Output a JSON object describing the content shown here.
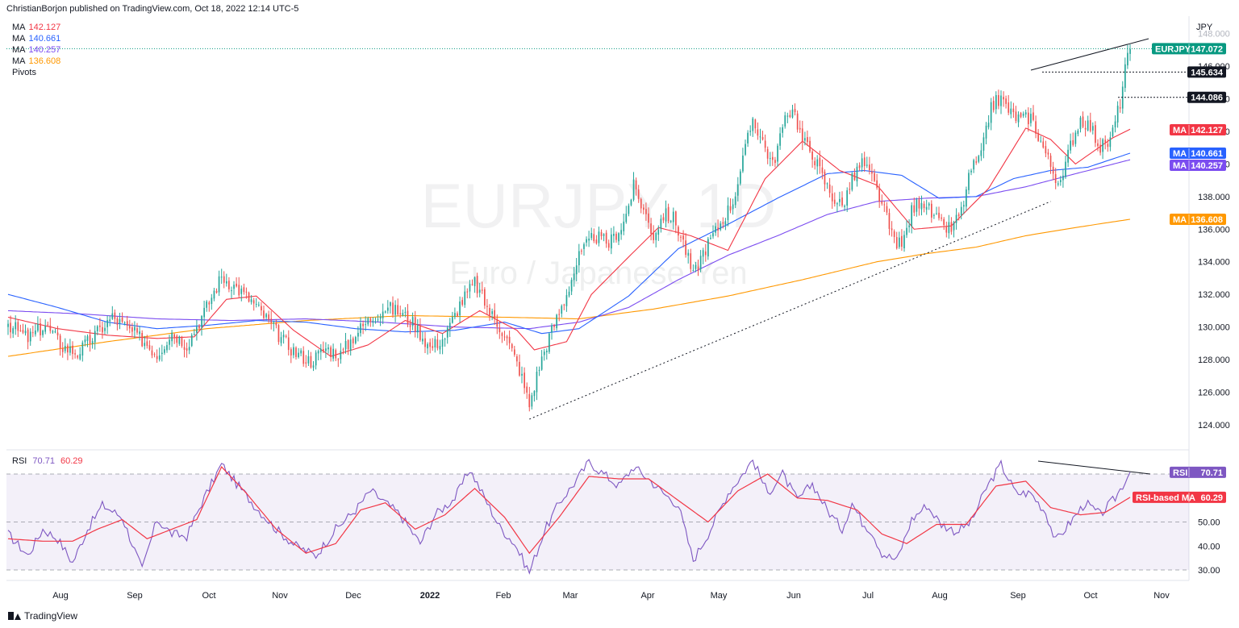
{
  "header": {
    "publisher_line": "ChristianBorjon published on TradingView.com, Oct 18, 2022 12:14 UTC-5"
  },
  "legend": [
    {
      "label": "MA",
      "value": "142.127",
      "color": "#f23645"
    },
    {
      "label": "MA",
      "value": "140.661",
      "color": "#2962ff"
    },
    {
      "label": "MA",
      "value": "140.257",
      "color": "#7b4cf0"
    },
    {
      "label": "MA",
      "value": "136.608",
      "color": "#ff9800"
    },
    {
      "label": "Pivots",
      "value": "",
      "color": "#131722"
    }
  ],
  "rsi_legend": {
    "label": "RSI",
    "value1": "70.71",
    "color1": "#7e57c2",
    "value2": "60.29",
    "color2": "#f23645"
  },
  "footer": {
    "brand": "TradingView"
  },
  "colors": {
    "up": "#26a69a",
    "down": "#ef5350",
    "ma20": "#f23645",
    "ma50": "#2962ff",
    "ma100": "#7b4cf0",
    "ma200": "#ff9800",
    "rsi": "#7e57c2",
    "rsi_ma": "#f23645"
  },
  "chart_data": {
    "type": "candlestick",
    "symbol": "EURJPY",
    "watermark_symbol": "EURJPY, 1D",
    "watermark_name": "Euro / Japanese Yen",
    "currency": "JPY",
    "price_axis": {
      "ticks": [
        "124.000",
        "126.000",
        "128.000",
        "130.000",
        "132.000",
        "134.000",
        "136.000",
        "138.000",
        "140.000",
        "142.000",
        "144.000",
        "146.000",
        "148.000"
      ],
      "ylim": [
        123.0,
        149.0
      ]
    },
    "time_axis": {
      "labels": [
        "Aug",
        "Sep",
        "Oct",
        "Nov",
        "Dec",
        "2022",
        "Feb",
        "Mar",
        "Apr",
        "May",
        "Jun",
        "Jul",
        "Aug",
        "Sep",
        "Oct",
        "Nov"
      ]
    },
    "last_price": {
      "label": "EURJPY",
      "value": "147.072"
    },
    "pivot_labels": [
      {
        "value": "145.634",
        "price": 145.634
      },
      {
        "value": "144.086",
        "price": 144.086
      }
    ],
    "ma_labels": [
      {
        "label": "MA",
        "value": "142.127",
        "price": 142.127,
        "color": "#f23645"
      },
      {
        "label": "MA",
        "value": "140.661",
        "price": 140.661,
        "color": "#2962ff"
      },
      {
        "label": "MA",
        "value": "140.257",
        "price": 140.257,
        "color": "#7b4cf0"
      },
      {
        "label": "MA",
        "value": "136.608",
        "price": 136.608,
        "color": "#ff9800"
      }
    ],
    "closes_anchors": [
      [
        0,
        130.2
      ],
      [
        8,
        129.3
      ],
      [
        15,
        130.1
      ],
      [
        22,
        128.8
      ],
      [
        28,
        128.4
      ],
      [
        35,
        129.5
      ],
      [
        42,
        130.6
      ],
      [
        48,
        129.9
      ],
      [
        55,
        129.1
      ],
      [
        60,
        128.3
      ],
      [
        66,
        129.7
      ],
      [
        72,
        128.9
      ],
      [
        80,
        131.2
      ],
      [
        86,
        133.1
      ],
      [
        92,
        132.4
      ],
      [
        98,
        131.6
      ],
      [
        104,
        130.5
      ],
      [
        110,
        129.3
      ],
      [
        116,
        128.4
      ],
      [
        122,
        127.9
      ],
      [
        128,
        128.7
      ],
      [
        134,
        128.3
      ],
      [
        140,
        129.6
      ],
      [
        146,
        130.5
      ],
      [
        152,
        131.2
      ],
      [
        158,
        130.9
      ],
      [
        164,
        130.1
      ],
      [
        170,
        128.7
      ],
      [
        176,
        129.4
      ],
      [
        182,
        131.4
      ],
      [
        188,
        132.7
      ],
      [
        194,
        130.9
      ],
      [
        200,
        129.6
      ],
      [
        206,
        127.4
      ],
      [
        210,
        125.2
      ],
      [
        214,
        127.6
      ],
      [
        218,
        129.4
      ],
      [
        224,
        131.6
      ],
      [
        230,
        134.3
      ],
      [
        236,
        135.6
      ],
      [
        242,
        135.1
      ],
      [
        248,
        136.4
      ],
      [
        252,
        138.6
      ],
      [
        256,
        137.2
      ],
      [
        260,
        135.6
      ],
      [
        264,
        136.9
      ],
      [
        268,
        136.7
      ],
      [
        272,
        135.2
      ],
      [
        276,
        133.1
      ],
      [
        280,
        134.6
      ],
      [
        286,
        136.1
      ],
      [
        292,
        137.7
      ],
      [
        296,
        140.2
      ],
      [
        300,
        142.8
      ],
      [
        304,
        141.4
      ],
      [
        308,
        139.9
      ],
      [
        312,
        142.2
      ],
      [
        316,
        143.6
      ],
      [
        320,
        141.4
      ],
      [
        324,
        140.7
      ],
      [
        328,
        139.2
      ],
      [
        332,
        138.0
      ],
      [
        336,
        137.4
      ],
      [
        340,
        139.0
      ],
      [
        344,
        140.1
      ],
      [
        348,
        139.1
      ],
      [
        352,
        137.6
      ],
      [
        356,
        135.6
      ],
      [
        360,
        134.9
      ],
      [
        364,
        137.1
      ],
      [
        368,
        137.9
      ],
      [
        372,
        136.9
      ],
      [
        376,
        136.2
      ],
      [
        380,
        136.0
      ],
      [
        384,
        137.1
      ],
      [
        388,
        139.7
      ],
      [
        392,
        140.4
      ],
      [
        396,
        143.6
      ],
      [
        400,
        144.0
      ],
      [
        404,
        143.1
      ],
      [
        408,
        142.7
      ],
      [
        412,
        142.9
      ],
      [
        416,
        141.4
      ],
      [
        420,
        139.9
      ],
      [
        424,
        138.6
      ],
      [
        428,
        141.2
      ],
      [
        432,
        142.8
      ],
      [
        436,
        142.3
      ],
      [
        440,
        141.0
      ],
      [
        444,
        141.4
      ],
      [
        448,
        143.8
      ],
      [
        450,
        145.8
      ],
      [
        452,
        147.05
      ]
    ],
    "ma20_anchors": [
      [
        0,
        130.6
      ],
      [
        20,
        129.9
      ],
      [
        40,
        129.5
      ],
      [
        60,
        129.3
      ],
      [
        75,
        129.4
      ],
      [
        88,
        131.7
      ],
      [
        100,
        131.9
      ],
      [
        115,
        129.8
      ],
      [
        130,
        128.2
      ],
      [
        145,
        128.9
      ],
      [
        160,
        130.4
      ],
      [
        175,
        129.6
      ],
      [
        190,
        131.0
      ],
      [
        205,
        129.8
      ],
      [
        212,
        128.6
      ],
      [
        225,
        129.1
      ],
      [
        235,
        132.0
      ],
      [
        250,
        134.3
      ],
      [
        262,
        136.1
      ],
      [
        275,
        135.6
      ],
      [
        290,
        134.7
      ],
      [
        305,
        139.1
      ],
      [
        320,
        141.4
      ],
      [
        335,
        139.6
      ],
      [
        350,
        138.7
      ],
      [
        365,
        136.0
      ],
      [
        380,
        136.2
      ],
      [
        395,
        138.5
      ],
      [
        410,
        142.2
      ],
      [
        420,
        141.5
      ],
      [
        430,
        140.0
      ],
      [
        445,
        141.6
      ],
      [
        452,
        142.127
      ]
    ],
    "ma50_anchors": [
      [
        0,
        132.0
      ],
      [
        20,
        131.2
      ],
      [
        40,
        130.3
      ],
      [
        60,
        129.9
      ],
      [
        80,
        130.1
      ],
      [
        100,
        130.4
      ],
      [
        120,
        130.3
      ],
      [
        140,
        129.9
      ],
      [
        160,
        129.7
      ],
      [
        180,
        129.8
      ],
      [
        200,
        130.3
      ],
      [
        215,
        129.6
      ],
      [
        230,
        129.9
      ],
      [
        250,
        131.9
      ],
      [
        270,
        134.8
      ],
      [
        290,
        136.3
      ],
      [
        310,
        137.9
      ],
      [
        330,
        139.4
      ],
      [
        345,
        139.6
      ],
      [
        360,
        139.3
      ],
      [
        375,
        137.9
      ],
      [
        390,
        138.0
      ],
      [
        405,
        139.1
      ],
      [
        420,
        139.6
      ],
      [
        435,
        139.8
      ],
      [
        452,
        140.661
      ]
    ],
    "ma100_anchors": [
      [
        0,
        131.0
      ],
      [
        30,
        130.8
      ],
      [
        60,
        130.5
      ],
      [
        90,
        130.4
      ],
      [
        120,
        130.5
      ],
      [
        150,
        130.3
      ],
      [
        180,
        130.0
      ],
      [
        210,
        129.9
      ],
      [
        230,
        130.3
      ],
      [
        250,
        131.2
      ],
      [
        270,
        132.9
      ],
      [
        290,
        134.4
      ],
      [
        310,
        135.6
      ],
      [
        330,
        136.9
      ],
      [
        350,
        137.7
      ],
      [
        370,
        137.9
      ],
      [
        390,
        138.0
      ],
      [
        410,
        138.6
      ],
      [
        430,
        139.4
      ],
      [
        452,
        140.257
      ]
    ],
    "ma200_anchors": [
      [
        0,
        128.2
      ],
      [
        40,
        129.1
      ],
      [
        80,
        129.9
      ],
      [
        120,
        130.4
      ],
      [
        160,
        130.7
      ],
      [
        200,
        130.6
      ],
      [
        230,
        130.5
      ],
      [
        260,
        131.1
      ],
      [
        290,
        131.9
      ],
      [
        320,
        132.9
      ],
      [
        350,
        134.0
      ],
      [
        370,
        134.5
      ],
      [
        390,
        134.9
      ],
      [
        410,
        135.6
      ],
      [
        430,
        136.1
      ],
      [
        452,
        136.608
      ]
    ],
    "rsi": {
      "legend_label": "RSI",
      "ylim": [
        25,
        82
      ],
      "ticks": [
        "30.00",
        "40.00",
        "50.00"
      ],
      "bands": [
        30,
        50,
        70
      ],
      "last_rsi": {
        "label": "RSI",
        "value": "70.71"
      },
      "last_ma": {
        "label": "RSI-based MA",
        "value": "60.29"
      },
      "rsi_anchors": [
        [
          0,
          45
        ],
        [
          8,
          36
        ],
        [
          14,
          47
        ],
        [
          20,
          43
        ],
        [
          26,
          33
        ],
        [
          32,
          47
        ],
        [
          38,
          57
        ],
        [
          46,
          52
        ],
        [
          54,
          30
        ],
        [
          60,
          51
        ],
        [
          66,
          45
        ],
        [
          72,
          44
        ],
        [
          78,
          58
        ],
        [
          86,
          74
        ],
        [
          92,
          66
        ],
        [
          100,
          56
        ],
        [
          108,
          47
        ],
        [
          116,
          40
        ],
        [
          124,
          36
        ],
        [
          132,
          47
        ],
        [
          140,
          55
        ],
        [
          146,
          63
        ],
        [
          152,
          58
        ],
        [
          158,
          53
        ],
        [
          166,
          41
        ],
        [
          172,
          53
        ],
        [
          180,
          60
        ],
        [
          186,
          72
        ],
        [
          192,
          60
        ],
        [
          198,
          48
        ],
        [
          204,
          41
        ],
        [
          210,
          29
        ],
        [
          216,
          46
        ],
        [
          222,
          58
        ],
        [
          228,
          66
        ],
        [
          234,
          75
        ],
        [
          240,
          70
        ],
        [
          246,
          65
        ],
        [
          252,
          73
        ],
        [
          258,
          68
        ],
        [
          264,
          62
        ],
        [
          270,
          57
        ],
        [
          276,
          34
        ],
        [
          282,
          45
        ],
        [
          290,
          62
        ],
        [
          296,
          70
        ],
        [
          300,
          76
        ],
        [
          306,
          62
        ],
        [
          312,
          70
        ],
        [
          318,
          59
        ],
        [
          324,
          66
        ],
        [
          330,
          55
        ],
        [
          336,
          47
        ],
        [
          340,
          58
        ],
        [
          344,
          50
        ],
        [
          348,
          46
        ],
        [
          352,
          37
        ],
        [
          358,
          34
        ],
        [
          364,
          51
        ],
        [
          370,
          57
        ],
        [
          376,
          49
        ],
        [
          382,
          46
        ],
        [
          388,
          50
        ],
        [
          394,
          64
        ],
        [
          400,
          74
        ],
        [
          406,
          62
        ],
        [
          412,
          62
        ],
        [
          418,
          54
        ],
        [
          422,
          42
        ],
        [
          428,
          50
        ],
        [
          434,
          58
        ],
        [
          440,
          53
        ],
        [
          446,
          60
        ],
        [
          452,
          70.71
        ]
      ],
      "ma_anchors": [
        [
          0,
          43
        ],
        [
          14,
          42
        ],
        [
          26,
          42
        ],
        [
          36,
          47
        ],
        [
          46,
          51
        ],
        [
          56,
          43
        ],
        [
          66,
          47
        ],
        [
          76,
          51
        ],
        [
          86,
          73
        ],
        [
          96,
          62
        ],
        [
          108,
          47
        ],
        [
          120,
          37
        ],
        [
          132,
          41
        ],
        [
          142,
          55
        ],
        [
          152,
          58
        ],
        [
          164,
          47
        ],
        [
          176,
          53
        ],
        [
          188,
          64
        ],
        [
          200,
          52
        ],
        [
          210,
          37
        ],
        [
          222,
          52
        ],
        [
          234,
          69
        ],
        [
          246,
          68
        ],
        [
          258,
          68
        ],
        [
          270,
          59
        ],
        [
          282,
          50
        ],
        [
          294,
          63
        ],
        [
          306,
          70
        ],
        [
          318,
          60
        ],
        [
          330,
          59
        ],
        [
          342,
          55
        ],
        [
          352,
          45
        ],
        [
          362,
          41
        ],
        [
          374,
          49
        ],
        [
          386,
          49
        ],
        [
          398,
          65
        ],
        [
          410,
          67
        ],
        [
          420,
          56
        ],
        [
          432,
          53
        ],
        [
          442,
          54
        ],
        [
          452,
          60.29
        ]
      ]
    }
  }
}
